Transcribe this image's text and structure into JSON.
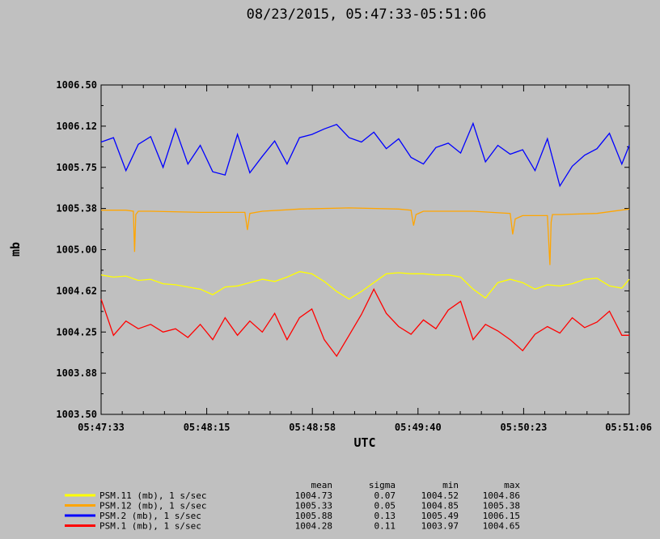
{
  "chart_data": {
    "type": "line",
    "title": "08/23/2015, 05:47:33-05:51:06",
    "xlabel": "UTC",
    "ylabel": "mb",
    "x_ticks": [
      "05:47:33",
      "05:48:15",
      "05:48:58",
      "05:49:40",
      "05:50:23",
      "05:51:06"
    ],
    "y_ticks": [
      "1006.50",
      "1006.12",
      "1005.75",
      "1005.38",
      "1005.00",
      "1004.62",
      "1004.25",
      "1003.88",
      "1003.50"
    ],
    "ylim": [
      1003.5,
      1006.5
    ],
    "x_range_seconds": [
      0,
      213
    ],
    "grid": false,
    "legend_position": "bottom",
    "stats_headers": [
      "mean",
      "sigma",
      "min",
      "max"
    ],
    "series": [
      {
        "name": "PSM.11 (mb), 1 s/sec",
        "color": "#ffff00",
        "stats": [
          "1004.73",
          "0.07",
          "1004.52",
          "1004.86"
        ],
        "x": [
          0,
          5,
          10,
          15,
          20,
          25,
          30,
          35,
          40,
          45,
          50,
          55,
          60,
          65,
          70,
          75,
          80,
          85,
          90,
          95,
          100,
          105,
          110,
          115,
          120,
          125,
          130,
          135,
          140,
          145,
          150,
          155,
          160,
          165,
          170,
          175,
          180,
          185,
          190,
          195,
          200,
          205,
          210,
          213
        ],
        "values": [
          1004.77,
          1004.75,
          1004.76,
          1004.72,
          1004.73,
          1004.69,
          1004.68,
          1004.66,
          1004.64,
          1004.59,
          1004.66,
          1004.67,
          1004.7,
          1004.73,
          1004.71,
          1004.75,
          1004.8,
          1004.78,
          1004.71,
          1004.62,
          1004.55,
          1004.62,
          1004.7,
          1004.78,
          1004.79,
          1004.78,
          1004.78,
          1004.77,
          1004.77,
          1004.75,
          1004.64,
          1004.56,
          1004.7,
          1004.73,
          1004.7,
          1004.64,
          1004.68,
          1004.67,
          1004.69,
          1004.73,
          1004.74,
          1004.67,
          1004.65,
          1004.73
        ]
      },
      {
        "name": "PSM.12 (mb), 1 s/sec",
        "color": "#ffa500",
        "stats": [
          "1005.33",
          "0.05",
          "1004.85",
          "1005.38"
        ],
        "x": [
          0,
          10,
          13,
          13.5,
          14,
          15,
          20,
          40,
          58,
          59,
          60,
          65,
          80,
          100,
          120,
          125,
          126,
          127,
          130,
          150,
          165,
          166,
          167,
          170,
          180,
          181,
          181.5,
          182,
          185,
          200,
          213
        ],
        "values": [
          1005.36,
          1005.36,
          1005.35,
          1004.98,
          1005.32,
          1005.35,
          1005.35,
          1005.34,
          1005.34,
          1005.18,
          1005.33,
          1005.35,
          1005.37,
          1005.38,
          1005.37,
          1005.36,
          1005.22,
          1005.32,
          1005.35,
          1005.35,
          1005.33,
          1005.14,
          1005.28,
          1005.31,
          1005.31,
          1004.86,
          1005.25,
          1005.32,
          1005.32,
          1005.33,
          1005.37
        ]
      },
      {
        "name": "PSM.2 (mb), 1 s/sec",
        "color": "#0000ff",
        "stats": [
          "1005.88",
          "0.13",
          "1005.49",
          "1006.15"
        ],
        "x": [
          0,
          5,
          10,
          15,
          20,
          25,
          30,
          35,
          40,
          45,
          50,
          55,
          60,
          65,
          70,
          75,
          80,
          85,
          90,
          95,
          100,
          105,
          110,
          115,
          120,
          125,
          130,
          135,
          140,
          145,
          150,
          155,
          160,
          165,
          170,
          175,
          180,
          185,
          190,
          195,
          200,
          205,
          210,
          213
        ],
        "values": [
          1005.98,
          1006.02,
          1005.72,
          1005.96,
          1006.03,
          1005.75,
          1006.1,
          1005.78,
          1005.95,
          1005.71,
          1005.68,
          1006.05,
          1005.7,
          1005.85,
          1005.99,
          1005.78,
          1006.02,
          1006.05,
          1006.1,
          1006.14,
          1006.02,
          1005.98,
          1006.07,
          1005.92,
          1006.01,
          1005.84,
          1005.78,
          1005.93,
          1005.97,
          1005.88,
          1006.15,
          1005.8,
          1005.95,
          1005.87,
          1005.91,
          1005.72,
          1006.01,
          1005.58,
          1005.76,
          1005.86,
          1005.92,
          1006.06,
          1005.78,
          1005.95
        ]
      },
      {
        "name": "PSM.1 (mb), 1 s/sec",
        "color": "#ff0000",
        "stats": [
          "1004.28",
          "0.11",
          "1003.97",
          "1004.65"
        ],
        "x": [
          0,
          5,
          10,
          15,
          20,
          25,
          30,
          35,
          40,
          45,
          50,
          55,
          60,
          65,
          70,
          75,
          80,
          85,
          90,
          95,
          100,
          105,
          110,
          115,
          120,
          125,
          130,
          135,
          140,
          145,
          150,
          155,
          160,
          165,
          170,
          175,
          180,
          185,
          190,
          195,
          200,
          205,
          210,
          213
        ],
        "values": [
          1004.55,
          1004.22,
          1004.35,
          1004.28,
          1004.32,
          1004.25,
          1004.28,
          1004.2,
          1004.32,
          1004.18,
          1004.38,
          1004.22,
          1004.35,
          1004.25,
          1004.42,
          1004.18,
          1004.38,
          1004.46,
          1004.18,
          1004.03,
          1004.22,
          1004.41,
          1004.64,
          1004.42,
          1004.3,
          1004.23,
          1004.36,
          1004.28,
          1004.45,
          1004.53,
          1004.18,
          1004.32,
          1004.26,
          1004.18,
          1004.08,
          1004.23,
          1004.3,
          1004.24,
          1004.38,
          1004.29,
          1004.34,
          1004.44,
          1004.22,
          1004.22
        ]
      }
    ]
  }
}
